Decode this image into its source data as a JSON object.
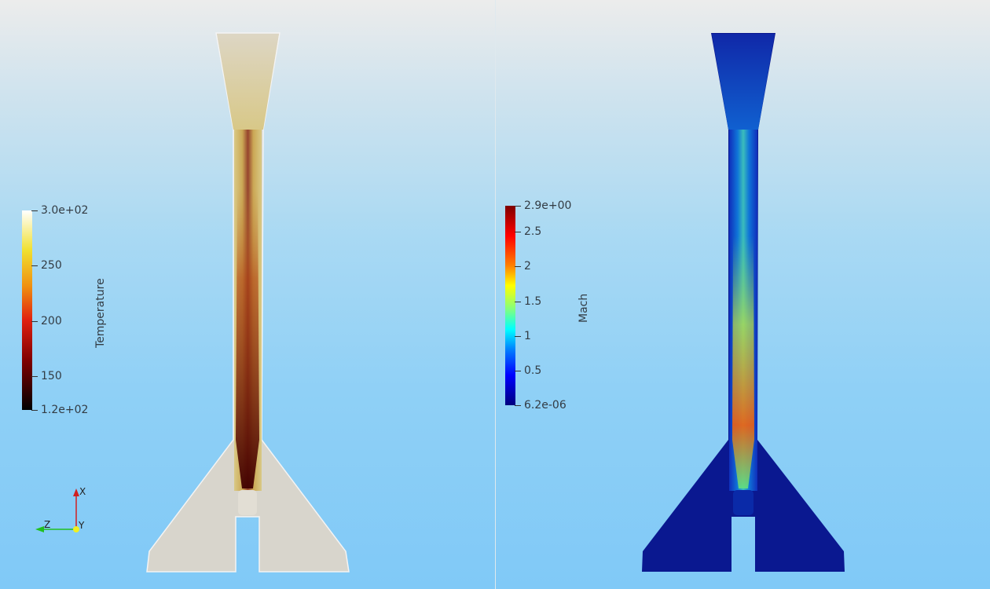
{
  "left_view": {
    "colorbar": {
      "title": "Temperature",
      "labels": [
        "3.0e+02",
        "250",
        "200",
        "150",
        "1.2e+02"
      ],
      "colormap": [
        "#ffffff",
        "#f0e030",
        "#f09010",
        "#e02010",
        "#800000",
        "#000000"
      ]
    },
    "orientation_axes": {
      "x": "X",
      "y": "Y",
      "z": "Z",
      "x_color": "#d02020",
      "y_color": "#f0f020",
      "z_color": "#20c020"
    }
  },
  "right_view": {
    "colorbar": {
      "title": "Mach",
      "labels": [
        "2.9e+00",
        "2.5",
        "2",
        "1.5",
        "1",
        "0.5",
        "6.2e-06"
      ],
      "colormap": [
        "#7f0000",
        "#ff0000",
        "#ff8000",
        "#ffff00",
        "#80ff80",
        "#00ffff",
        "#0080ff",
        "#0000ff",
        "#00007f"
      ]
    }
  }
}
